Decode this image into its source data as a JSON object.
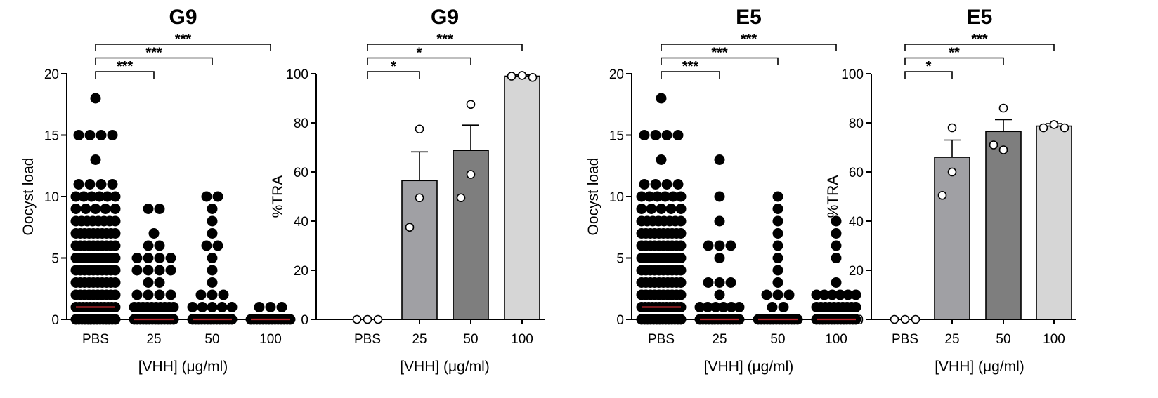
{
  "chart_data": [
    {
      "type": "scatter",
      "title": "G9",
      "ylabel": "Oocyst load",
      "xlabel": "[VHH] (μg/ml)",
      "ylim": [
        0,
        20
      ],
      "yticks": [
        0,
        5,
        10,
        15,
        20
      ],
      "categories": [
        "PBS",
        "25",
        "50",
        "100"
      ],
      "medians": [
        1,
        0,
        0,
        0
      ],
      "groups": [
        [
          [
            18,
            1
          ],
          [
            15,
            4
          ],
          [
            13,
            1
          ],
          [
            11,
            4
          ],
          [
            10,
            6
          ],
          [
            9,
            5
          ],
          [
            8,
            8
          ],
          [
            7,
            10
          ],
          [
            6,
            10
          ],
          [
            5,
            10
          ],
          [
            4,
            10
          ],
          [
            3,
            10
          ],
          [
            2,
            10
          ],
          [
            1,
            12
          ],
          [
            0,
            14
          ]
        ],
        [
          [
            9,
            2
          ],
          [
            7,
            1
          ],
          [
            6,
            2
          ],
          [
            5,
            4
          ],
          [
            4,
            4
          ],
          [
            3,
            2
          ],
          [
            2,
            4
          ],
          [
            1,
            10
          ],
          [
            0,
            14
          ]
        ],
        [
          [
            10,
            2
          ],
          [
            9,
            1
          ],
          [
            8,
            1
          ],
          [
            7,
            1
          ],
          [
            6,
            2
          ],
          [
            5,
            1
          ],
          [
            4,
            1
          ],
          [
            3,
            1
          ],
          [
            2,
            3
          ],
          [
            1,
            5
          ],
          [
            0,
            14
          ]
        ],
        [
          [
            1,
            3
          ],
          [
            0,
            14
          ]
        ]
      ],
      "significance": [
        {
          "to": "25",
          "label": "***"
        },
        {
          "to": "50",
          "label": "***"
        },
        {
          "to": "100",
          "label": "***"
        }
      ]
    },
    {
      "type": "bar",
      "title": "G9",
      "ylabel": "%TRA",
      "xlabel": "[VHH] (μg/ml)",
      "ylim": [
        0,
        100
      ],
      "yticks": [
        0,
        20,
        40,
        60,
        80,
        100
      ],
      "categories": [
        "PBS",
        "25",
        "50",
        "100"
      ],
      "values": [
        0,
        56.5,
        68.8,
        99
      ],
      "sem": [
        0,
        11.7,
        10.3,
        0.5
      ],
      "points": [
        [
          0,
          0,
          0
        ],
        [
          77.5,
          49.5,
          37.5
        ],
        [
          87.5,
          59,
          49.5
        ],
        [
          99,
          99.3,
          98.5
        ]
      ],
      "colors": [
        "#ffffff",
        "#a0a0a4",
        "#7e7e7e",
        "#d6d6d6"
      ],
      "significance": [
        {
          "to": "25",
          "label": "*"
        },
        {
          "to": "50",
          "label": "*"
        },
        {
          "to": "100",
          "label": "***"
        }
      ]
    },
    {
      "type": "scatter",
      "title": "E5",
      "ylabel": "Oocyst load",
      "xlabel": "[VHH] (μg/ml)",
      "ylim": [
        0,
        20
      ],
      "yticks": [
        0,
        5,
        10,
        15,
        20
      ],
      "categories": [
        "PBS",
        "25",
        "50",
        "100"
      ],
      "medians": [
        1,
        0,
        0,
        0
      ],
      "groups": [
        [
          [
            18,
            1
          ],
          [
            15,
            4
          ],
          [
            13,
            1
          ],
          [
            11,
            4
          ],
          [
            10,
            6
          ],
          [
            9,
            5
          ],
          [
            8,
            8
          ],
          [
            7,
            10
          ],
          [
            6,
            10
          ],
          [
            5,
            10
          ],
          [
            4,
            10
          ],
          [
            3,
            10
          ],
          [
            2,
            10
          ],
          [
            1,
            12
          ],
          [
            0,
            14
          ]
        ],
        [
          [
            13,
            1
          ],
          [
            10,
            1
          ],
          [
            8,
            1
          ],
          [
            6,
            3
          ],
          [
            5,
            1
          ],
          [
            3,
            3
          ],
          [
            2,
            1
          ],
          [
            1,
            6
          ],
          [
            0,
            14
          ]
        ],
        [
          [
            10,
            1
          ],
          [
            9,
            1
          ],
          [
            8,
            1
          ],
          [
            7,
            1
          ],
          [
            6,
            1
          ],
          [
            5,
            1
          ],
          [
            4,
            1
          ],
          [
            3,
            1
          ],
          [
            2,
            3
          ],
          [
            1,
            2
          ],
          [
            0,
            14
          ]
        ],
        [
          [
            8,
            1
          ],
          [
            7,
            1
          ],
          [
            6,
            1
          ],
          [
            5,
            1
          ],
          [
            3,
            1
          ],
          [
            2,
            6
          ],
          [
            1,
            10
          ],
          [
            0,
            14
          ]
        ]
      ],
      "significance": [
        {
          "to": "25",
          "label": "***"
        },
        {
          "to": "50",
          "label": "***"
        },
        {
          "to": "100",
          "label": "***"
        }
      ]
    },
    {
      "type": "bar",
      "title": "E5",
      "ylabel": "%TRA",
      "xlabel": "[VHH] (μg/ml)",
      "ylim": [
        0,
        100
      ],
      "yticks": [
        0,
        20,
        40,
        60,
        80,
        100
      ],
      "categories": [
        "PBS",
        "25",
        "50",
        "100"
      ],
      "values": [
        0,
        66,
        76.5,
        78.7
      ],
      "sem": [
        0,
        7,
        4.8,
        1
      ],
      "points": [
        [
          0,
          0,
          0
        ],
        [
          78,
          60,
          50.5
        ],
        [
          86,
          69,
          71
        ],
        [
          78,
          79.3,
          78
        ]
      ],
      "colors": [
        "#ffffff",
        "#a0a0a4",
        "#7e7e7e",
        "#d6d6d6"
      ],
      "significance": [
        {
          "to": "25",
          "label": "*"
        },
        {
          "to": "50",
          "label": "**"
        },
        {
          "to": "100",
          "label": "***"
        }
      ]
    }
  ]
}
